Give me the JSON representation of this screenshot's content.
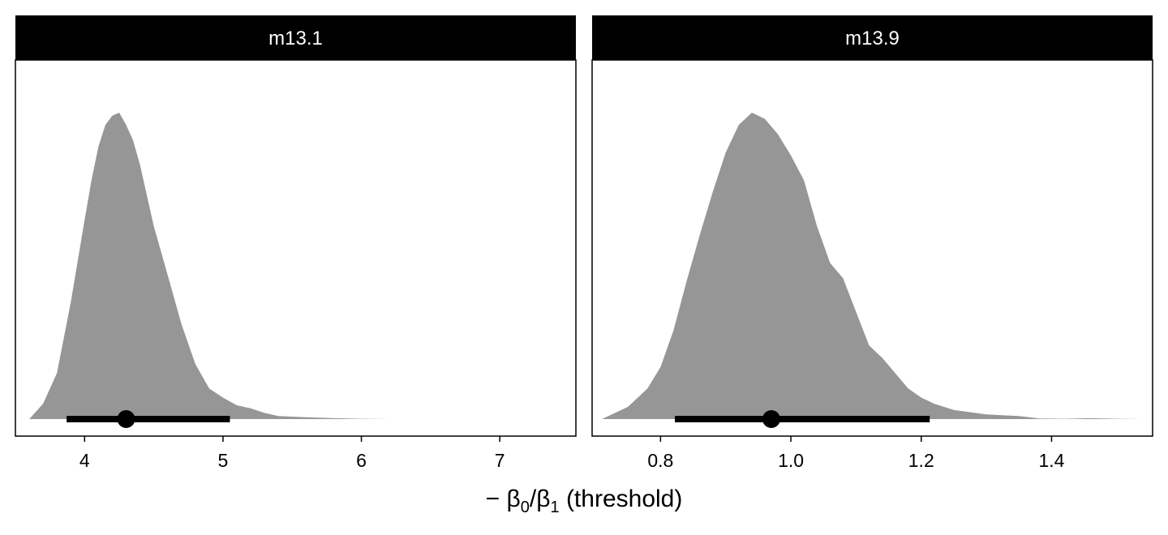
{
  "chart_data": [
    {
      "type": "area",
      "subtype": "density-with-pointinterval",
      "panel": "m13.1",
      "xlim": [
        3.5,
        7.55
      ],
      "ticks": [
        4,
        5,
        6,
        7
      ],
      "tick_labels": [
        "4",
        "5",
        "6",
        "7"
      ],
      "density_color": "#969696",
      "interval_color": "#000000",
      "point_estimate": 4.3,
      "interval": [
        3.87,
        5.05
      ],
      "density": {
        "x": [
          3.6,
          3.7,
          3.8,
          3.9,
          4.0,
          4.05,
          4.1,
          4.15,
          4.2,
          4.25,
          4.3,
          4.35,
          4.4,
          4.5,
          4.6,
          4.7,
          4.8,
          4.9,
          5.0,
          5.1,
          5.2,
          5.3,
          5.4,
          5.5,
          5.6,
          5.8,
          6.0,
          6.2,
          6.5,
          7.0,
          7.4
        ],
        "y": [
          0.0,
          0.05,
          0.15,
          0.38,
          0.65,
          0.78,
          0.89,
          0.96,
          0.99,
          1.0,
          0.96,
          0.91,
          0.83,
          0.63,
          0.47,
          0.31,
          0.18,
          0.1,
          0.07,
          0.045,
          0.035,
          0.02,
          0.01,
          0.008,
          0.006,
          0.003,
          0.001,
          0.0,
          0.0,
          0.0,
          0.0
        ]
      }
    },
    {
      "type": "area",
      "subtype": "density-with-pointinterval",
      "panel": "m13.9",
      "xlim": [
        0.695,
        1.555
      ],
      "ticks": [
        0.8,
        1.0,
        1.2,
        1.4
      ],
      "tick_labels": [
        "0.8",
        "1.0",
        "1.2",
        "1.4"
      ],
      "density_color": "#969696",
      "interval_color": "#000000",
      "point_estimate": 0.97,
      "interval": [
        0.822,
        1.213
      ],
      "density": {
        "x": [
          0.71,
          0.75,
          0.78,
          0.8,
          0.82,
          0.84,
          0.86,
          0.88,
          0.9,
          0.92,
          0.94,
          0.95,
          0.96,
          0.98,
          1.0,
          1.02,
          1.04,
          1.06,
          1.08,
          1.1,
          1.12,
          1.14,
          1.16,
          1.18,
          1.2,
          1.22,
          1.25,
          1.3,
          1.35,
          1.38,
          1.42,
          1.46,
          1.5,
          1.54
        ],
        "y": [
          0.0,
          0.04,
          0.1,
          0.17,
          0.29,
          0.45,
          0.6,
          0.74,
          0.87,
          0.96,
          1.0,
          0.99,
          0.98,
          0.93,
          0.86,
          0.78,
          0.63,
          0.51,
          0.46,
          0.35,
          0.24,
          0.2,
          0.15,
          0.1,
          0.07,
          0.05,
          0.03,
          0.015,
          0.01,
          0.002,
          0.001,
          0.003,
          0.001,
          0.0
        ]
      }
    }
  ],
  "axis": {
    "xlabel_prefix": "− β",
    "xlabel_sub0": "0",
    "xlabel_slash": "/β",
    "xlabel_sub1": "1",
    "xlabel_suffix": " (threshold)"
  }
}
